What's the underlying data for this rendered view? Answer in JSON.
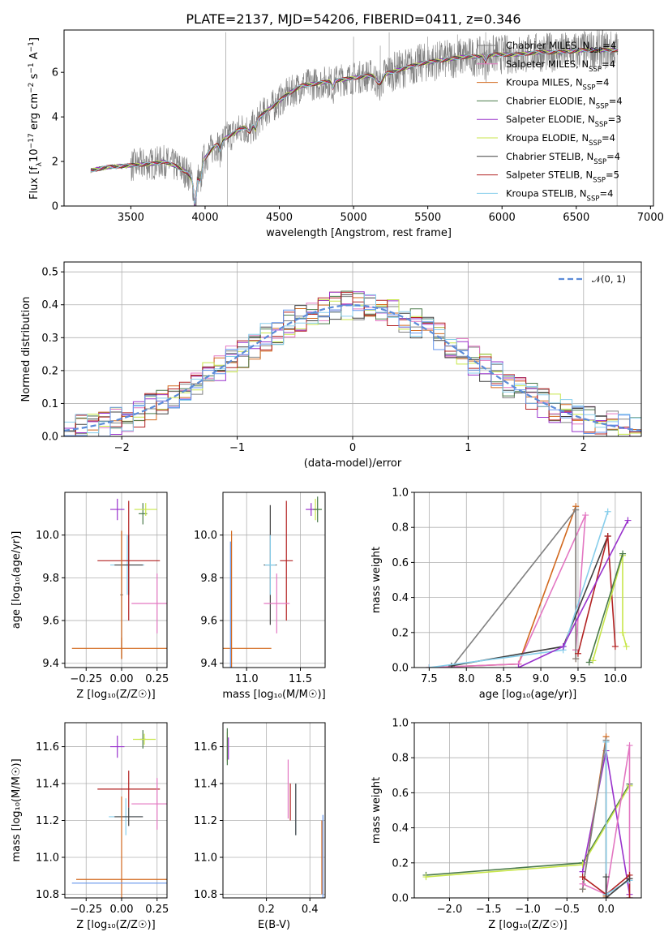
{
  "title": "PLATE=2137, MJD=54206, FIBERID=0411, z=0.346",
  "colors": {
    "Chabrier MILES": "#808080",
    "Salpeter MILES": "#e377c2",
    "Kroupa MILES": "#d2691e",
    "Chabrier ELODIE": "#4a7a4a",
    "Salpeter ELODIE": "#9932cc",
    "Kroupa ELODIE": "#c8e64b",
    "Chabrier STELIB": "#404040",
    "Salpeter STELIB": "#b22222",
    "Kroupa STELIB": "#87ceeb",
    "gaussian": "#5b8bd8",
    "hist_extra1": "#6495ed",
    "hist_extra2": "#8fbc8f"
  },
  "legend_spectrum": [
    {
      "model": "Chabrier MILES",
      "prefix": "Chabrier MILES, N",
      "nssp": "=4"
    },
    {
      "model": "Salpeter MILES",
      "prefix": "Salpeter MILES, N",
      "nssp": "=4"
    },
    {
      "model": "Kroupa MILES",
      "prefix": "Kroupa MILES, N",
      "nssp": "=4"
    },
    {
      "model": "Chabrier ELODIE",
      "prefix": "Chabrier ELODIE, N",
      "nssp": "=4"
    },
    {
      "model": "Salpeter ELODIE",
      "prefix": "Salpeter ELODIE, N",
      "nssp": "=3"
    },
    {
      "model": "Kroupa ELODIE",
      "prefix": "Kroupa ELODIE, N",
      "nssp": "=4"
    },
    {
      "model": "Chabrier STELIB",
      "prefix": "Chabrier STELIB, N",
      "nssp": "=4"
    },
    {
      "model": "Salpeter STELIB",
      "prefix": "Salpeter STELIB, N",
      "nssp": "=5"
    },
    {
      "model": "Kroupa STELIB",
      "prefix": "Kroupa STELIB, N",
      "nssp": "=4"
    }
  ],
  "nssp_sub": "SSP",
  "chart_data": [
    {
      "id": "spectrum",
      "type": "line",
      "xlabel": "wavelength [Angstrom, rest frame]",
      "ylabel": "Flux [f_λ10^-17 erg cm^-2 s^-1 A^-1]",
      "xlim": [
        3050,
        7020
      ],
      "ylim": [
        0,
        7.9
      ],
      "xticks": [
        3500,
        4000,
        4500,
        5000,
        5500,
        6000,
        6500,
        7000
      ],
      "yticks": [
        0,
        2,
        4,
        6
      ],
      "continuum": [
        [
          3230,
          1.6
        ],
        [
          3350,
          1.75
        ],
        [
          3450,
          1.8
        ],
        [
          3550,
          1.85
        ],
        [
          3650,
          1.9
        ],
        [
          3720,
          2.0
        ],
        [
          3800,
          1.8
        ],
        [
          3880,
          1.5
        ],
        [
          3930,
          1.0
        ],
        [
          3970,
          1.9
        ],
        [
          4050,
          2.6
        ],
        [
          4150,
          3.1
        ],
        [
          4250,
          3.5
        ],
        [
          4330,
          3.7
        ],
        [
          4400,
          4.2
        ],
        [
          4480,
          4.6
        ],
        [
          4550,
          5.0
        ],
        [
          4650,
          5.4
        ],
        [
          4750,
          5.5
        ],
        [
          4850,
          5.6
        ],
        [
          4950,
          5.7
        ],
        [
          5050,
          5.8
        ],
        [
          5150,
          5.9
        ],
        [
          5250,
          6.0
        ],
        [
          5350,
          6.2
        ],
        [
          5450,
          6.4
        ],
        [
          5550,
          6.5
        ],
        [
          5650,
          6.6
        ],
        [
          5750,
          6.7
        ],
        [
          5850,
          6.7
        ],
        [
          5950,
          6.8
        ],
        [
          6100,
          6.8
        ],
        [
          6250,
          6.9
        ],
        [
          6400,
          6.9
        ],
        [
          6550,
          7.0
        ],
        [
          6700,
          7.0
        ],
        [
          6780,
          7.0
        ]
      ],
      "absorptions": [
        [
          3934,
          1.2,
          12
        ],
        [
          3968,
          0.9,
          12
        ],
        [
          4102,
          0.4,
          10
        ],
        [
          4300,
          0.35,
          18
        ],
        [
          4340,
          0.4,
          10
        ],
        [
          4861,
          0.35,
          10
        ],
        [
          5175,
          0.5,
          30
        ],
        [
          5890,
          0.3,
          10
        ]
      ],
      "spikes": [
        [
          4140,
          7.8
        ],
        [
          4150,
          0
        ],
        [
          4990,
          0
        ],
        [
          5000,
          7.6
        ],
        [
          5180,
          7.2
        ],
        [
          5240,
          7.8
        ],
        [
          5500,
          7.6
        ],
        [
          5700,
          7.7
        ],
        [
          5890,
          7.8
        ],
        [
          6590,
          7.7
        ],
        [
          6770,
          7.8
        ],
        [
          6775,
          0
        ]
      ]
    },
    {
      "id": "residuals",
      "type": "histogram",
      "xlabel": "(data-model)/error",
      "ylabel": "Normed distribution",
      "xlim": [
        -2.5,
        2.5
      ],
      "ylim": [
        0,
        0.53
      ],
      "xticks": [
        -2,
        -1,
        0,
        1,
        2
      ],
      "yticks": [
        0.0,
        0.1,
        0.2,
        0.3,
        0.4,
        0.5
      ],
      "bin_width": 0.1,
      "gaussian_label": "𝒩(0, 1)"
    },
    {
      "id": "age_vs_Z",
      "type": "errorbar",
      "xlabel": "Z [log₁₀(Z/Z☉)]",
      "ylabel": "age  [log₁₀(age/yr)]",
      "xlim": [
        -0.4,
        0.32
      ],
      "ylim": [
        9.38,
        10.2
      ],
      "xticks": [
        -0.25,
        0.0,
        0.25
      ],
      "yticks": [
        9.4,
        9.6,
        9.8,
        10.0
      ],
      "points": [
        {
          "model": "Salpeter ELODIE",
          "x": -0.03,
          "y": 10.12,
          "xerr": 0.05,
          "yerr": 0.05
        },
        {
          "model": "Chabrier ELODIE",
          "x": 0.15,
          "y": 10.1,
          "xerr": 0.03,
          "yerr": 0.05
        },
        {
          "model": "Kroupa ELODIE",
          "x": 0.17,
          "y": 10.12,
          "xerr": 0.08,
          "yerr": 0.03
        },
        {
          "model": "Chabrier MILES",
          "x": 0.0,
          "y": 9.72,
          "xerr": 0.01,
          "yerr": 0.3
        },
        {
          "model": "Kroupa MILES",
          "x": 0.0,
          "y": 9.47,
          "xerr": 0.35,
          "yerr": 0.05
        },
        {
          "model": "Kroupa STELIB",
          "x": 0.04,
          "y": 9.86,
          "xerr": 0.12,
          "yerr": 0.14
        },
        {
          "model": "Chabrier STELIB",
          "x": 0.05,
          "y": 9.86,
          "xerr": 0.1,
          "yerr": 0.14
        },
        {
          "model": "Salpeter STELIB",
          "x": 0.05,
          "y": 9.88,
          "xerr": 0.22,
          "yerr": 0.28
        },
        {
          "model": "Salpeter MILES",
          "x": 0.25,
          "y": 9.68,
          "xerr": 0.18,
          "yerr": 0.14
        },
        {
          "model": "Kroupa MILES",
          "x": 0.0,
          "y": 9.72,
          "xerr": 0.0,
          "yerr": 0.3
        }
      ]
    },
    {
      "id": "age_vs_mass",
      "type": "errorbar",
      "xlabel": "mass [log₁₀(M/M☉)]",
      "ylabel": "",
      "xlim": [
        10.78,
        11.73
      ],
      "ylim": [
        9.38,
        10.2
      ],
      "xticks": [
        11.0,
        11.5
      ],
      "yticks": [
        9.4,
        9.6,
        9.8,
        10.0
      ],
      "points": [
        {
          "model": "Kroupa ELODIE",
          "x": 11.64,
          "y": 10.12,
          "xerr": 0.05,
          "yerr": 0.05
        },
        {
          "model": "Salpeter ELODIE",
          "x": 11.6,
          "y": 10.12,
          "xerr": 0.05,
          "yerr": 0.03
        },
        {
          "model": "Chabrier ELODIE",
          "x": 11.66,
          "y": 10.12,
          "xerr": 0.04,
          "yerr": 0.06
        },
        {
          "model": "Chabrier STELIB",
          "x": 11.22,
          "y": 9.86,
          "xerr": 0.06,
          "yerr": 0.28
        },
        {
          "model": "Kroupa STELIB",
          "x": 11.22,
          "y": 9.86,
          "xerr": 0.05,
          "yerr": 0.14
        },
        {
          "model": "Salpeter STELIB",
          "x": 11.37,
          "y": 9.88,
          "xerr": 0.06,
          "yerr": 0.28
        },
        {
          "model": "Salpeter MILES",
          "x": 11.28,
          "y": 9.68,
          "xerr": 0.12,
          "yerr": 0.14
        },
        {
          "model": "Kroupa MILES",
          "x": 10.86,
          "y": 9.47,
          "xerr": 0.37,
          "yerr": 0.55
        },
        {
          "model": "hist_extra1",
          "x": 10.85,
          "y": 9.47,
          "xerr": 0.0,
          "yerr": 0.5
        }
      ]
    },
    {
      "id": "mass_weight_vs_age",
      "type": "line",
      "xlabel": "age  [log₁₀(age/yr)]",
      "ylabel": "mass weight",
      "xlim": [
        7.3,
        10.35
      ],
      "ylim": [
        0,
        1.0
      ],
      "xticks": [
        7.5,
        8.0,
        8.5,
        9.0,
        9.5,
        10.0
      ],
      "yticks": [
        0.0,
        0.2,
        0.4,
        0.6,
        0.8,
        1.0
      ],
      "series": [
        {
          "model": "Kroupa MILES",
          "x": [
            7.5,
            8.7,
            9.47,
            9.47,
            9.47
          ],
          "y": [
            0.0,
            0.02,
            0.92,
            0.1,
            0.05
          ]
        },
        {
          "model": "Salpeter MILES",
          "x": [
            7.5,
            8.7,
            9.6,
            9.47
          ],
          "y": [
            0.0,
            0.02,
            0.87,
            0.1
          ]
        },
        {
          "model": "Chabrier MILES",
          "x": [
            7.8,
            9.47,
            9.47
          ],
          "y": [
            0.0,
            0.9,
            0.05
          ]
        },
        {
          "model": "Chabrier STELIB",
          "x": [
            7.8,
            9.3,
            9.9
          ],
          "y": [
            0.01,
            0.12,
            0.75
          ]
        },
        {
          "model": "Salpeter STELIB",
          "x": [
            9.5,
            9.9,
            10.0
          ],
          "y": [
            0.08,
            0.75,
            0.12
          ]
        },
        {
          "model": "Kroupa STELIB",
          "x": [
            7.5,
            9.3,
            9.9
          ],
          "y": [
            0.0,
            0.1,
            0.89
          ]
        },
        {
          "model": "Salpeter ELODIE",
          "x": [
            8.7,
            9.3,
            10.17
          ],
          "y": [
            0.0,
            0.12,
            0.84
          ]
        },
        {
          "model": "Kroupa ELODIE",
          "x": [
            9.7,
            10.1,
            10.1,
            10.15
          ],
          "y": [
            0.04,
            0.64,
            0.2,
            0.12
          ]
        },
        {
          "model": "Chabrier ELODIE",
          "x": [
            9.65,
            10.1
          ],
          "y": [
            0.03,
            0.65
          ]
        }
      ]
    },
    {
      "id": "mass_vs_Z",
      "type": "errorbar",
      "xlabel": "Z [log₁₀(Z/Z☉)]",
      "ylabel": "mass [log₁₀(M/M☉)]",
      "xlim": [
        -0.4,
        0.32
      ],
      "ylim": [
        10.78,
        11.73
      ],
      "xticks": [
        -0.25,
        0.0,
        0.25
      ],
      "yticks": [
        10.8,
        11.0,
        11.2,
        11.4,
        11.6
      ],
      "points": [
        {
          "model": "Salpeter ELODIE",
          "x": -0.03,
          "y": 11.6,
          "xerr": 0.05,
          "yerr": 0.06
        },
        {
          "model": "Chabrier ELODIE",
          "x": 0.15,
          "y": 11.64,
          "xerr": 0.02,
          "yerr": 0.05
        },
        {
          "model": "Kroupa ELODIE",
          "x": 0.16,
          "y": 11.64,
          "xerr": 0.08,
          "yerr": 0.03
        },
        {
          "model": "Salpeter STELIB",
          "x": 0.05,
          "y": 11.37,
          "xerr": 0.22,
          "yerr": 0.1
        },
        {
          "model": "Kroupa STELIB",
          "x": 0.03,
          "y": 11.22,
          "xerr": 0.12,
          "yerr": 0.1
        },
        {
          "model": "Chabrier STELIB",
          "x": 0.05,
          "y": 11.22,
          "xerr": 0.1,
          "yerr": 0.05
        },
        {
          "model": "Salpeter MILES",
          "x": 0.25,
          "y": 11.29,
          "xerr": 0.18,
          "yerr": 0.14
        },
        {
          "model": "Kroupa MILES",
          "x": 0.0,
          "y": 10.88,
          "xerr": 0.32,
          "yerr": 0.45
        },
        {
          "model": "hist_extra1",
          "x": 0.0,
          "y": 10.86,
          "xerr": 0.35,
          "yerr": 0.0
        }
      ]
    },
    {
      "id": "mass_vs_ebv",
      "type": "errorbar",
      "xlabel": "E(B-V)",
      "ylabel": "",
      "xlim": [
        0.0,
        0.47
      ],
      "ylim": [
        10.78,
        11.73
      ],
      "xticks": [
        0.2,
        0.4
      ],
      "yticks": [
        10.8,
        11.0,
        11.2,
        11.4,
        11.6
      ],
      "points": [
        {
          "model": "Kroupa ELODIE",
          "x": 0.02,
          "y": 11.6,
          "xerr": 0,
          "yerr": 0.08
        },
        {
          "model": "Chabrier ELODIE",
          "x": 0.02,
          "y": 11.6,
          "xerr": 0,
          "yerr": 0.1
        },
        {
          "model": "Salpeter ELODIE",
          "x": 0.025,
          "y": 11.59,
          "xerr": 0,
          "yerr": 0.06
        },
        {
          "model": "Salpeter MILES",
          "x": 0.3,
          "y": 11.37,
          "xerr": 0,
          "yerr": 0.16
        },
        {
          "model": "Salpeter STELIB",
          "x": 0.31,
          "y": 11.3,
          "xerr": 0,
          "yerr": 0.1
        },
        {
          "model": "Kroupa STELIB",
          "x": 0.335,
          "y": 11.26,
          "xerr": 0,
          "yerr": 0.14
        },
        {
          "model": "Chabrier STELIB",
          "x": 0.335,
          "y": 11.26,
          "xerr": 0,
          "yerr": 0.14
        },
        {
          "model": "Kroupa MILES",
          "x": 0.455,
          "y": 11.0,
          "xerr": 0,
          "yerr": 0.2
        },
        {
          "model": "hist_extra1",
          "x": 0.46,
          "y": 11.0,
          "xerr": 0,
          "yerr": 0.23
        }
      ]
    },
    {
      "id": "mass_weight_vs_Z",
      "type": "line",
      "xlabel": "Z [log₁₀(Z/Z☉)]",
      "ylabel": "mass weight",
      "xlim": [
        -2.45,
        0.45
      ],
      "ylim": [
        0,
        1.0
      ],
      "xticks": [
        -2.0,
        -1.5,
        -1.0,
        -0.5,
        0.0
      ],
      "yticks": [
        0.0,
        0.2,
        0.4,
        0.6,
        0.8,
        1.0
      ],
      "series": [
        {
          "model": "Chabrier ELODIE",
          "x": [
            -2.3,
            -0.3,
            0.3
          ],
          "y": [
            0.13,
            0.2,
            0.65
          ]
        },
        {
          "model": "Kroupa ELODIE",
          "x": [
            -2.3,
            -0.3,
            0.3
          ],
          "y": [
            0.12,
            0.19,
            0.64
          ]
        },
        {
          "model": "Salpeter ELODIE",
          "x": [
            -0.3,
            0.0,
            0.3
          ],
          "y": [
            0.15,
            0.84,
            0.02
          ]
        },
        {
          "model": "Kroupa MILES",
          "x": [
            -0.3,
            0.0,
            0.0,
            0.0
          ],
          "y": [
            0.05,
            0.92,
            0.01,
            0.0
          ]
        },
        {
          "model": "Chabrier MILES",
          "x": [
            -0.3,
            0.0,
            0.0
          ],
          "y": [
            0.05,
            0.9,
            0.02
          ]
        },
        {
          "model": "Salpeter MILES",
          "x": [
            -0.3,
            0.0,
            0.3,
            0.3
          ],
          "y": [
            0.08,
            0.02,
            0.87,
            0.0
          ]
        },
        {
          "model": "Salpeter STELIB",
          "x": [
            -0.3,
            0.0,
            0.3,
            0.3
          ],
          "y": [
            0.12,
            0.02,
            0.13,
            0.0
          ]
        },
        {
          "model": "Kroupa STELIB",
          "x": [
            0.0,
            0.0,
            0.3
          ],
          "y": [
            0.89,
            0.02,
            0.1
          ]
        },
        {
          "model": "Chabrier STELIB",
          "x": [
            0.0,
            0.0,
            0.3
          ],
          "y": [
            0.12,
            0.0,
            0.11
          ]
        }
      ]
    }
  ]
}
